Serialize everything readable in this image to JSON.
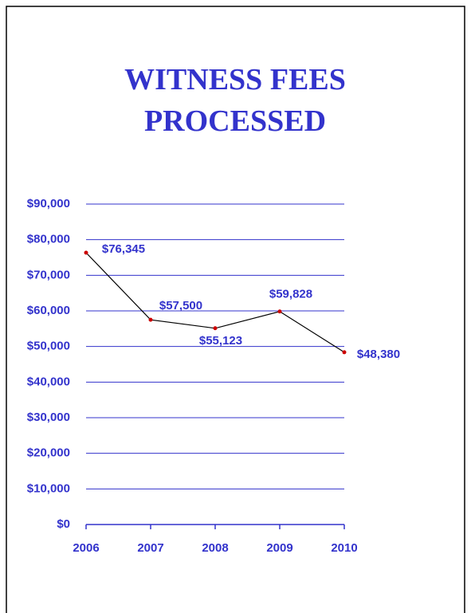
{
  "chart_data": {
    "type": "line",
    "title": "WITNESS FEES PROCESSED",
    "categories": [
      "2006",
      "2007",
      "2008",
      "2009",
      "2010"
    ],
    "values": [
      76345,
      57500,
      55123,
      59828,
      48380
    ],
    "value_labels": [
      "$76,345",
      "$57,500",
      "$55,123",
      "$59,828",
      "$48,380"
    ],
    "color": "#000000",
    "marker_color": "#cc0000",
    "ylim": [
      0,
      90000
    ],
    "yticks": [
      {
        "value": 0,
        "label": "$0"
      },
      {
        "value": 10000,
        "label": "$10,000"
      },
      {
        "value": 20000,
        "label": "$20,000"
      },
      {
        "value": 30000,
        "label": "$30,000"
      },
      {
        "value": 40000,
        "label": "$40,000"
      },
      {
        "value": 50000,
        "label": "$50,000"
      },
      {
        "value": 60000,
        "label": "$60,000"
      },
      {
        "value": 70000,
        "label": "$70,000"
      },
      {
        "value": 80000,
        "label": "$80,000"
      },
      {
        "value": 90000,
        "label": "$90,000"
      }
    ],
    "grid": true
  }
}
